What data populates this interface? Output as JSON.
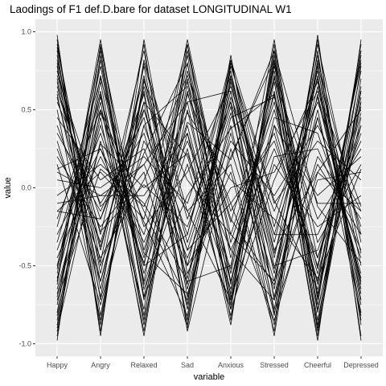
{
  "chart_data": {
    "type": "line",
    "title": "Laodings of F1 def.D.bare for dataset LONGITUDINAL W1",
    "xlabel": "variable",
    "ylabel": "value",
    "categories": [
      "Happy",
      "Angry",
      "Relaxed",
      "Sad",
      "Anxious",
      "Stressed",
      "Cheerful",
      "Depressed"
    ],
    "ylim": [
      -1.08,
      1.08
    ],
    "yticks": [
      -1.0,
      -0.5,
      0.0,
      0.5,
      1.0
    ],
    "ytick_labels": [
      "-1.0",
      "-0.5",
      "0.0",
      "0.5",
      "1.0"
    ],
    "grid": true,
    "background": "#ebebeb",
    "grid_color": "#ffffff",
    "line_color": "#000000",
    "series": [
      {
        "values": [
          0.92,
          -0.55,
          0.78,
          -0.62,
          0.7,
          -0.45,
          0.85,
          -0.72
        ]
      },
      {
        "values": [
          0.88,
          -0.82,
          0.65,
          -0.35,
          0.52,
          -0.78,
          0.8,
          -0.5
        ]
      },
      {
        "values": [
          0.75,
          -0.3,
          0.88,
          -0.7,
          0.35,
          -0.6,
          0.92,
          -0.35
        ]
      },
      {
        "values": [
          0.8,
          -0.65,
          0.55,
          -0.85,
          0.8,
          -0.25,
          0.7,
          -0.8
        ]
      },
      {
        "values": [
          0.7,
          -0.4,
          0.72,
          -0.5,
          0.62,
          -0.7,
          0.6,
          -0.62
        ]
      },
      {
        "values": [
          0.95,
          -0.92,
          0.82,
          -0.15,
          0.15,
          -0.88,
          0.88,
          -0.95
        ]
      },
      {
        "values": [
          0.62,
          -0.2,
          0.6,
          -0.78,
          0.72,
          -0.35,
          0.75,
          -0.42
        ]
      },
      {
        "values": [
          0.85,
          -0.72,
          0.4,
          -0.4,
          0.48,
          -0.52,
          0.65,
          -0.68
        ]
      },
      {
        "values": [
          0.55,
          -0.1,
          0.35,
          -0.58,
          0.58,
          -0.15,
          0.55,
          -0.25
        ]
      },
      {
        "values": [
          0.9,
          -0.48,
          0.92,
          -0.92,
          0.25,
          -0.65,
          0.95,
          -0.88
        ]
      },
      {
        "values": [
          0.68,
          -0.6,
          0.5,
          -0.3,
          0.82,
          -0.42,
          0.45,
          -0.55
        ]
      },
      {
        "values": [
          0.78,
          -0.88,
          0.7,
          -0.65,
          0.4,
          -0.82,
          0.82,
          -0.3
        ]
      },
      {
        "values": [
          0.45,
          0.05,
          0.25,
          -0.45,
          0.3,
          -0.05,
          0.4,
          -0.15
        ]
      },
      {
        "values": [
          0.82,
          -0.38,
          0.62,
          -0.88,
          0.68,
          -0.55,
          0.72,
          -0.75
        ]
      },
      {
        "values": [
          0.6,
          -0.7,
          0.8,
          -0.2,
          0.55,
          -0.3,
          0.58,
          -0.6
        ]
      },
      {
        "values": [
          0.98,
          -0.95,
          0.95,
          -0.55,
          0.1,
          -0.92,
          0.98,
          -0.98
        ]
      },
      {
        "values": [
          -0.95,
          0.85,
          -0.7,
          0.62,
          -0.55,
          0.72,
          -0.88,
          0.78
        ]
      },
      {
        "values": [
          -0.88,
          0.6,
          -0.85,
          0.88,
          -0.3,
          0.55,
          -0.75,
          0.92
        ]
      },
      {
        "values": [
          -0.75,
          0.72,
          -0.55,
          0.4,
          -0.68,
          0.8,
          -0.92,
          0.55
        ]
      },
      {
        "values": [
          -0.82,
          0.45,
          -0.92,
          0.75,
          -0.15,
          0.35,
          -0.6,
          0.85
        ]
      },
      {
        "values": [
          -0.62,
          0.9,
          -0.4,
          0.55,
          -0.75,
          0.88,
          -0.8,
          0.62
        ]
      },
      {
        "values": [
          -0.92,
          0.3,
          -0.78,
          0.92,
          -0.45,
          0.6,
          -0.95,
          0.7
        ]
      },
      {
        "values": [
          -0.55,
          0.78,
          -0.62,
          0.25,
          -0.82,
          0.4,
          -0.55,
          0.48
        ]
      },
      {
        "values": [
          -0.7,
          0.55,
          -0.95,
          0.68,
          -0.22,
          0.75,
          -0.7,
          0.88
        ]
      },
      {
        "values": [
          -0.98,
          0.92,
          -0.6,
          0.8,
          -0.6,
          0.62,
          -0.98,
          0.95
        ]
      },
      {
        "values": [
          -0.45,
          0.2,
          -0.35,
          0.3,
          -0.4,
          0.25,
          -0.45,
          0.35
        ]
      },
      {
        "values": [
          -0.85,
          0.68,
          -0.82,
          0.5,
          -0.72,
          0.82,
          -0.85,
          0.58
        ]
      },
      {
        "values": [
          -0.65,
          0.4,
          -0.5,
          0.95,
          -0.35,
          0.5,
          -0.62,
          0.75
        ]
      },
      {
        "values": [
          -0.8,
          0.82,
          -0.72,
          0.35,
          -0.88,
          0.92,
          -0.78,
          0.45
        ]
      },
      {
        "values": [
          -0.5,
          0.62,
          -0.88,
          0.6,
          -0.1,
          0.3,
          -0.5,
          0.8
        ]
      },
      {
        "values": [
          -0.9,
          0.5,
          -0.45,
          0.85,
          -0.62,
          0.68,
          -0.9,
          0.65
        ]
      },
      {
        "values": [
          -0.6,
          0.95,
          -0.65,
          0.15,
          -0.78,
          0.85,
          -0.68,
          0.4
        ]
      },
      {
        "values": [
          0.2,
          -0.25,
          0.1,
          -0.9,
          0.78,
          -0.1,
          0.3,
          0.05
        ]
      },
      {
        "values": [
          -0.15,
          0.1,
          -0.2,
          0.92,
          -0.7,
          0.15,
          -0.25,
          -0.05
        ]
      },
      {
        "values": [
          0.35,
          -0.15,
          0.45,
          -0.75,
          0.85,
          -0.72,
          0.2,
          -0.2
        ]
      },
      {
        "values": [
          -0.3,
          0.25,
          -0.3,
          0.7,
          -0.85,
          0.78,
          -0.35,
          0.15
        ]
      },
      {
        "values": [
          0.1,
          -0.05,
          0.15,
          0.55,
          0.62,
          -0.8,
          0.05,
          0.1
        ]
      },
      {
        "values": [
          -0.05,
          0.15,
          -0.1,
          -0.6,
          -0.5,
          0.7,
          -0.1,
          -0.1
        ]
      },
      {
        "values": [
          0.4,
          -0.35,
          0.55,
          0.2,
          -0.65,
          0.45,
          0.35,
          -0.45
        ]
      },
      {
        "values": [
          -0.4,
          0.35,
          -0.5,
          -0.3,
          0.75,
          -0.5,
          -0.4,
          0.4
        ]
      },
      {
        "values": [
          0.25,
          -0.45,
          0.05,
          0.72,
          -0.2,
          -0.62,
          0.15,
          -0.3
        ]
      },
      {
        "values": [
          -0.2,
          0.5,
          -0.15,
          -0.72,
          0.45,
          0.58,
          -0.2,
          0.25
        ]
      },
      {
        "values": [
          0.05,
          0.0,
          0.2,
          -0.1,
          0.72,
          -0.4,
          0.1,
          -0.15
        ]
      },
      {
        "values": [
          -0.1,
          -0.05,
          -0.05,
          0.35,
          -0.6,
          0.4,
          -0.05,
          0.2
        ]
      },
      {
        "values": [
          0.3,
          -0.6,
          0.4,
          0.65,
          -0.4,
          -0.72,
          0.45,
          -0.58
        ]
      },
      {
        "values": [
          -0.35,
          0.58,
          -0.42,
          -0.68,
          0.2,
          0.82,
          -0.45,
          0.52
        ]
      },
      {
        "values": [
          0.15,
          -0.75,
          0.3,
          -0.15,
          -0.72,
          0.2,
          0.25,
          -0.4
        ]
      },
      {
        "values": [
          -0.25,
          0.7,
          -0.25,
          0.1,
          0.65,
          -0.3,
          -0.3,
          0.3
        ]
      },
      {
        "values": [
          0.72,
          -0.12,
          0.15,
          -0.5,
          0.0,
          0.1,
          0.62,
          -0.12
        ]
      },
      {
        "values": [
          -0.72,
          0.12,
          -0.12,
          0.48,
          0.05,
          -0.2,
          -0.58,
          0.12
        ]
      },
      {
        "values": [
          0.5,
          -0.85,
          0.68,
          0.05,
          -0.3,
          -0.6,
          0.5,
          -0.82
        ]
      },
      {
        "values": [
          -0.52,
          0.88,
          -0.7,
          -0.05,
          0.38,
          0.6,
          -0.52,
          0.82
        ]
      },
      {
        "values": [
          0.58,
          -0.5,
          0.22,
          0.8,
          -0.78,
          0.05,
          0.68,
          -0.65
        ]
      },
      {
        "values": [
          -0.58,
          0.48,
          -0.22,
          -0.82,
          0.82,
          -0.08,
          -0.65,
          0.62
        ]
      },
      {
        "values": [
          -0.15,
          -0.2,
          0.5,
          -0.4,
          -0.1,
          -0.85,
          0.1,
          0.5
        ]
      },
      {
        "values": [
          0.12,
          0.25,
          -0.48,
          0.42,
          0.18,
          0.88,
          -0.12,
          -0.48
        ]
      },
      {
        "values": [
          0.65,
          -0.28,
          0.02,
          -0.25,
          0.55,
          -0.95,
          0.78,
          -0.85
        ]
      },
      {
        "values": [
          -0.68,
          0.28,
          0.0,
          0.22,
          -0.52,
          0.95,
          -0.72,
          0.88
        ]
      }
    ]
  }
}
